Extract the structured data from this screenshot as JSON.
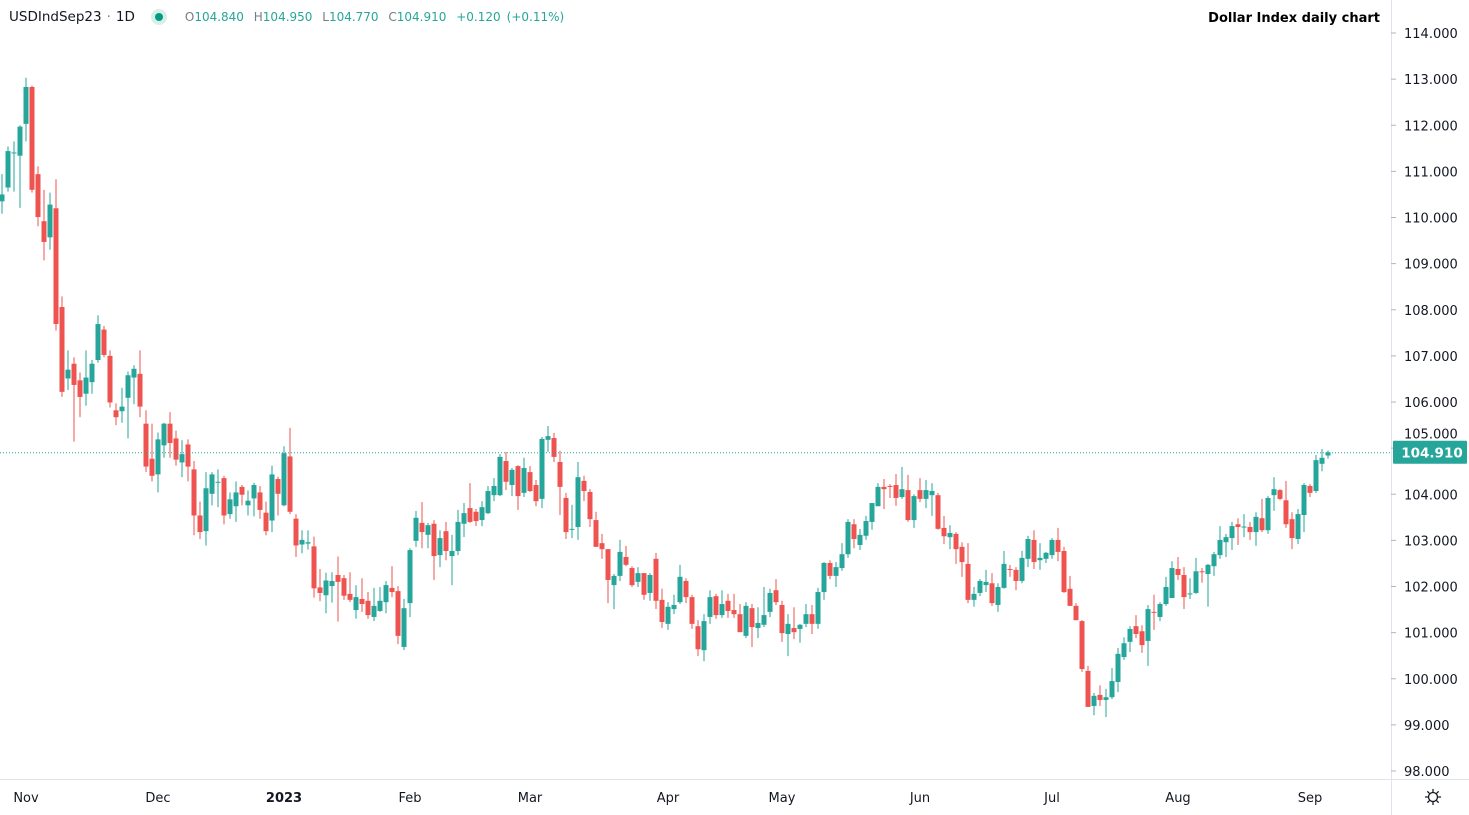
{
  "header": {
    "symbol": "USDIndSep23",
    "separator": "·",
    "interval": "1D",
    "open_label": "O",
    "open": "104.840",
    "high_label": "H",
    "high": "104.950",
    "low_label": "L",
    "low": "104.770",
    "close_label": "C",
    "close": "104.910",
    "change": "+0.120",
    "change_pct": "(+0.11%)",
    "status_icon": "market-open-dot"
  },
  "chart_title": "Dollar Index daily chart",
  "settings_icon": "gear-icon",
  "colors": {
    "up": "#26a69a",
    "down": "#ef5350",
    "last_price": "#26a69a"
  },
  "chart_data": {
    "type": "candlestick",
    "title": "Dollar Index daily chart",
    "ylim": [
      97.8,
      114.4
    ],
    "y_ticks": [
      "98.000",
      "99.000",
      "100.000",
      "101.000",
      "102.000",
      "103.000",
      "104.000",
      "105.000",
      "106.000",
      "107.000",
      "108.000",
      "109.000",
      "110.000",
      "111.000",
      "112.000",
      "113.000",
      "114.000"
    ],
    "y_axis_side": "right",
    "grid": false,
    "last_price": 104.91,
    "last_price_label": "104.910",
    "x_ticks": [
      {
        "label": "Nov",
        "bar": 3,
        "bold": false
      },
      {
        "label": "Dec",
        "bar": 25,
        "bold": false
      },
      {
        "label": "2023",
        "bar": 46,
        "bold": true
      },
      {
        "label": "Feb",
        "bar": 67,
        "bold": false
      },
      {
        "label": "Mar",
        "bar": 87,
        "bold": false
      },
      {
        "label": "Apr",
        "bar": 110,
        "bold": false
      },
      {
        "label": "May",
        "bar": 129,
        "bold": false
      },
      {
        "label": "Jun",
        "bar": 152,
        "bold": false
      },
      {
        "label": "Jul",
        "bar": 174,
        "bold": false
      },
      {
        "label": "Aug",
        "bar": 195,
        "bold": false
      },
      {
        "label": "Sep",
        "bar": 217,
        "bold": false
      }
    ],
    "ohlc_fields": [
      "open",
      "high",
      "low",
      "close"
    ],
    "ohlc": [
      [
        110.35,
        110.94,
        110.08,
        110.5
      ],
      [
        110.65,
        111.54,
        110.56,
        111.44
      ],
      [
        111.39,
        111.65,
        110.56,
        111.41
      ],
      [
        111.34,
        112.0,
        110.21,
        111.97
      ],
      [
        112.03,
        113.03,
        111.65,
        112.83
      ],
      [
        112.83,
        112.86,
        110.54,
        110.6
      ],
      [
        110.94,
        111.11,
        109.81,
        110.01
      ],
      [
        109.92,
        110.6,
        109.07,
        109.47
      ],
      [
        109.57,
        110.54,
        109.3,
        110.28
      ],
      [
        110.2,
        110.83,
        107.55,
        107.69
      ],
      [
        108.06,
        108.29,
        106.11,
        106.22
      ],
      [
        106.51,
        107.12,
        106.26,
        106.7
      ],
      [
        106.83,
        106.97,
        105.14,
        106.37
      ],
      [
        106.47,
        106.64,
        105.67,
        106.11
      ],
      [
        106.18,
        107.12,
        105.92,
        106.53
      ],
      [
        106.43,
        106.91,
        106.18,
        106.83
      ],
      [
        106.91,
        107.88,
        106.85,
        107.69
      ],
      [
        107.57,
        107.65,
        106.97,
        107.02
      ],
      [
        107.0,
        107.12,
        105.88,
        105.99
      ],
      [
        105.82,
        105.97,
        105.5,
        105.67
      ],
      [
        105.8,
        106.31,
        105.55,
        105.9
      ],
      [
        106.09,
        106.66,
        105.21,
        106.58
      ],
      [
        106.53,
        106.8,
        105.95,
        106.72
      ],
      [
        106.61,
        107.12,
        105.67,
        105.9
      ],
      [
        105.53,
        105.82,
        104.48,
        104.6
      ],
      [
        104.77,
        105.53,
        104.28,
        104.4
      ],
      [
        104.43,
        105.34,
        104.04,
        105.19
      ],
      [
        105.06,
        105.55,
        104.79,
        105.53
      ],
      [
        105.53,
        105.78,
        104.79,
        105.11
      ],
      [
        105.21,
        105.38,
        104.62,
        104.75
      ],
      [
        104.69,
        105.17,
        104.37,
        104.87
      ],
      [
        105.08,
        105.19,
        104.28,
        104.6
      ],
      [
        104.54,
        104.72,
        103.11,
        103.54
      ],
      [
        103.54,
        103.84,
        103.03,
        103.18
      ],
      [
        103.2,
        104.48,
        102.89,
        104.13
      ],
      [
        104.01,
        104.48,
        103.76,
        104.43
      ],
      [
        104.25,
        104.54,
        103.72,
        104.27
      ],
      [
        104.35,
        104.4,
        103.35,
        103.54
      ],
      [
        103.57,
        104.04,
        103.47,
        103.89
      ],
      [
        103.74,
        104.28,
        103.4,
        104.04
      ],
      [
        104.16,
        104.2,
        103.76,
        103.99
      ],
      [
        103.76,
        104.08,
        103.54,
        103.86
      ],
      [
        103.91,
        104.25,
        103.52,
        104.2
      ],
      [
        104.04,
        104.18,
        103.47,
        103.66
      ],
      [
        103.6,
        103.84,
        103.11,
        103.2
      ],
      [
        103.43,
        104.62,
        103.18,
        104.43
      ],
      [
        104.33,
        104.38,
        103.54,
        104.01
      ],
      [
        103.76,
        105.04,
        103.74,
        104.89
      ],
      [
        104.82,
        105.44,
        103.57,
        103.62
      ],
      [
        103.47,
        103.57,
        102.64,
        102.89
      ],
      [
        102.91,
        103.22,
        102.72,
        103.01
      ],
      [
        102.93,
        103.22,
        102.8,
        102.96
      ],
      [
        102.87,
        103.08,
        101.76,
        101.96
      ],
      [
        101.98,
        102.38,
        101.68,
        101.86
      ],
      [
        101.81,
        102.3,
        101.42,
        102.13
      ],
      [
        102.01,
        102.31,
        101.65,
        102.12
      ],
      [
        102.25,
        102.65,
        101.24,
        102.1
      ],
      [
        102.18,
        102.25,
        101.71,
        101.8
      ],
      [
        101.84,
        102.31,
        101.66,
        101.71
      ],
      [
        101.49,
        102.03,
        101.3,
        101.77
      ],
      [
        101.73,
        102.18,
        101.45,
        101.62
      ],
      [
        101.69,
        101.88,
        101.3,
        101.38
      ],
      [
        101.34,
        101.97,
        101.25,
        101.58
      ],
      [
        101.47,
        101.99,
        101.45,
        101.69
      ],
      [
        101.66,
        102.12,
        101.42,
        102.03
      ],
      [
        101.97,
        102.44,
        101.77,
        101.88
      ],
      [
        101.9,
        102.01,
        100.75,
        100.93
      ],
      [
        100.69,
        101.73,
        100.62,
        101.53
      ],
      [
        101.64,
        102.83,
        101.34,
        102.79
      ],
      [
        102.99,
        103.64,
        102.86,
        103.49
      ],
      [
        103.38,
        103.83,
        102.83,
        103.18
      ],
      [
        103.12,
        103.38,
        102.83,
        103.33
      ],
      [
        103.36,
        103.44,
        102.14,
        102.66
      ],
      [
        102.68,
        103.22,
        102.42,
        103.05
      ],
      [
        103.2,
        103.4,
        102.57,
        102.77
      ],
      [
        102.66,
        103.12,
        102.03,
        102.77
      ],
      [
        102.77,
        103.66,
        102.68,
        103.4
      ],
      [
        103.36,
        103.81,
        103.07,
        103.59
      ],
      [
        103.7,
        104.24,
        103.38,
        103.4
      ],
      [
        103.62,
        103.68,
        103.31,
        103.42
      ],
      [
        103.44,
        103.85,
        103.31,
        103.72
      ],
      [
        103.59,
        104.18,
        103.57,
        104.07
      ],
      [
        103.98,
        104.35,
        103.85,
        104.18
      ],
      [
        103.98,
        104.87,
        103.96,
        104.81
      ],
      [
        104.72,
        104.92,
        104.09,
        104.27
      ],
      [
        104.2,
        104.57,
        103.96,
        104.53
      ],
      [
        104.61,
        104.63,
        103.66,
        103.96
      ],
      [
        104.03,
        104.79,
        103.94,
        104.57
      ],
      [
        104.48,
        104.61,
        104.05,
        104.07
      ],
      [
        104.2,
        104.31,
        103.74,
        103.85
      ],
      [
        103.9,
        105.24,
        103.7,
        105.2
      ],
      [
        105.18,
        105.48,
        104.92,
        105.26
      ],
      [
        105.22,
        105.33,
        104.7,
        104.81
      ],
      [
        104.7,
        104.94,
        103.55,
        104.16
      ],
      [
        103.92,
        104.03,
        103.03,
        103.18
      ],
      [
        103.24,
        103.77,
        103.05,
        103.25
      ],
      [
        103.29,
        104.7,
        103.01,
        104.37
      ],
      [
        104.29,
        104.4,
        103.85,
        104.07
      ],
      [
        104.05,
        104.11,
        103.29,
        103.46
      ],
      [
        103.44,
        103.62,
        102.86,
        102.86
      ],
      [
        102.94,
        103.14,
        102.6,
        102.81
      ],
      [
        102.81,
        102.81,
        101.64,
        102.14
      ],
      [
        102.03,
        102.27,
        101.51,
        102.23
      ],
      [
        102.23,
        103.01,
        102.12,
        102.75
      ],
      [
        102.64,
        102.88,
        102.44,
        102.47
      ],
      [
        102.4,
        102.44,
        101.99,
        102.03
      ],
      [
        102.1,
        102.42,
        101.99,
        102.29
      ],
      [
        102.29,
        102.29,
        101.71,
        101.82
      ],
      [
        101.86,
        102.29,
        101.69,
        102.25
      ],
      [
        102.6,
        102.73,
        101.51,
        101.69
      ],
      [
        101.71,
        101.95,
        101.1,
        101.23
      ],
      [
        101.19,
        101.66,
        101.06,
        101.56
      ],
      [
        101.51,
        101.82,
        101.4,
        101.6
      ],
      [
        101.66,
        102.47,
        101.62,
        102.21
      ],
      [
        102.12,
        102.18,
        101.64,
        101.77
      ],
      [
        101.77,
        101.82,
        101.08,
        101.19
      ],
      [
        101.14,
        101.27,
        100.49,
        100.64
      ],
      [
        100.62,
        101.4,
        100.38,
        101.25
      ],
      [
        101.34,
        101.92,
        101.19,
        101.77
      ],
      [
        101.79,
        101.84,
        101.3,
        101.38
      ],
      [
        101.38,
        101.92,
        101.32,
        101.62
      ],
      [
        101.69,
        101.84,
        101.32,
        101.47
      ],
      [
        101.49,
        101.84,
        101.32,
        101.4
      ],
      [
        101.4,
        101.62,
        101.01,
        101.01
      ],
      [
        100.93,
        101.66,
        100.88,
        101.58
      ],
      [
        101.53,
        101.62,
        100.69,
        101.12
      ],
      [
        101.1,
        101.55,
        100.88,
        101.21
      ],
      [
        101.17,
        101.99,
        101.12,
        101.38
      ],
      [
        101.45,
        101.95,
        101.34,
        101.86
      ],
      [
        101.92,
        102.16,
        101.6,
        101.66
      ],
      [
        101.6,
        101.69,
        100.8,
        100.99
      ],
      [
        100.97,
        101.4,
        100.49,
        101.19
      ],
      [
        101.1,
        101.55,
        100.86,
        101.01
      ],
      [
        101.08,
        101.19,
        100.78,
        101.17
      ],
      [
        101.19,
        101.62,
        101.12,
        101.4
      ],
      [
        101.4,
        101.6,
        100.97,
        101.19
      ],
      [
        101.19,
        101.97,
        101.08,
        101.88
      ],
      [
        101.88,
        102.53,
        101.71,
        102.51
      ],
      [
        102.51,
        102.57,
        102.16,
        102.23
      ],
      [
        102.23,
        102.53,
        101.99,
        102.42
      ],
      [
        102.4,
        102.94,
        102.34,
        102.7
      ],
      [
        102.7,
        103.46,
        102.62,
        103.4
      ],
      [
        103.35,
        103.46,
        102.83,
        103.03
      ],
      [
        102.9,
        103.25,
        102.79,
        103.12
      ],
      [
        103.1,
        103.53,
        103.01,
        103.42
      ],
      [
        103.4,
        103.81,
        103.23,
        103.81
      ],
      [
        103.74,
        104.24,
        103.74,
        104.16
      ],
      [
        104.16,
        104.33,
        103.68,
        104.11
      ],
      [
        104.18,
        104.22,
        103.92,
        104.17
      ],
      [
        104.2,
        104.44,
        103.75,
        103.92
      ],
      [
        103.94,
        104.59,
        103.9,
        104.11
      ],
      [
        104.09,
        104.42,
        103.4,
        103.44
      ],
      [
        103.44,
        104.0,
        103.27,
        103.96
      ],
      [
        104.09,
        104.35,
        103.83,
        103.9
      ],
      [
        103.9,
        104.31,
        103.7,
        104.09
      ],
      [
        103.98,
        104.24,
        103.53,
        104.07
      ],
      [
        103.98,
        104.03,
        103.23,
        103.25
      ],
      [
        103.27,
        103.53,
        102.92,
        103.09
      ],
      [
        103.07,
        103.33,
        102.81,
        103.16
      ],
      [
        103.14,
        103.18,
        102.49,
        102.81
      ],
      [
        102.86,
        102.96,
        102.21,
        102.53
      ],
      [
        102.49,
        102.94,
        101.64,
        101.71
      ],
      [
        101.71,
        101.99,
        101.56,
        101.84
      ],
      [
        101.86,
        102.16,
        101.79,
        102.12
      ],
      [
        102.03,
        102.36,
        101.88,
        102.1
      ],
      [
        102.07,
        102.29,
        101.58,
        101.64
      ],
      [
        101.6,
        102.07,
        101.45,
        101.99
      ],
      [
        101.97,
        102.77,
        101.95,
        102.49
      ],
      [
        102.38,
        102.47,
        102.21,
        102.36
      ],
      [
        102.36,
        102.42,
        101.92,
        102.12
      ],
      [
        102.12,
        102.77,
        102.07,
        102.62
      ],
      [
        102.6,
        103.1,
        102.42,
        103.03
      ],
      [
        103.01,
        103.22,
        102.38,
        102.53
      ],
      [
        102.57,
        102.94,
        102.36,
        102.62
      ],
      [
        102.6,
        102.75,
        102.51,
        102.73
      ],
      [
        102.68,
        103.05,
        102.6,
        103.01
      ],
      [
        103.01,
        103.27,
        102.55,
        102.75
      ],
      [
        102.77,
        102.86,
        101.86,
        101.88
      ],
      [
        101.95,
        102.23,
        101.58,
        101.58
      ],
      [
        101.58,
        101.64,
        101.27,
        101.27
      ],
      [
        101.25,
        101.27,
        100.15,
        100.21
      ],
      [
        100.17,
        100.28,
        99.39,
        99.39
      ],
      [
        99.41,
        99.69,
        99.21,
        99.63
      ],
      [
        99.65,
        99.86,
        99.41,
        99.54
      ],
      [
        99.54,
        99.78,
        99.17,
        99.6
      ],
      [
        99.6,
        100.23,
        99.56,
        99.95
      ],
      [
        99.93,
        100.67,
        99.71,
        100.54
      ],
      [
        100.47,
        100.9,
        100.41,
        100.77
      ],
      [
        100.8,
        101.14,
        100.58,
        101.08
      ],
      [
        101.14,
        101.38,
        100.88,
        100.97
      ],
      [
        101.03,
        101.16,
        100.56,
        100.73
      ],
      [
        100.82,
        101.6,
        100.28,
        101.51
      ],
      [
        101.45,
        101.82,
        101.06,
        101.44
      ],
      [
        101.34,
        101.66,
        101.25,
        101.62
      ],
      [
        101.62,
        102.21,
        101.58,
        101.99
      ],
      [
        101.75,
        102.55,
        101.75,
        102.4
      ],
      [
        102.38,
        102.64,
        102.14,
        102.25
      ],
      [
        102.25,
        102.42,
        101.51,
        101.77
      ],
      [
        101.84,
        102.18,
        101.73,
        101.85
      ],
      [
        101.86,
        102.62,
        101.84,
        102.33
      ],
      [
        102.33,
        102.4,
        102.08,
        102.31
      ],
      [
        102.27,
        102.49,
        101.56,
        102.47
      ],
      [
        102.44,
        102.75,
        102.23,
        102.7
      ],
      [
        102.68,
        103.31,
        102.6,
        103.01
      ],
      [
        102.96,
        103.14,
        102.64,
        103.07
      ],
      [
        103.05,
        103.4,
        102.79,
        103.31
      ],
      [
        103.35,
        103.48,
        102.9,
        103.29
      ],
      [
        103.29,
        103.57,
        103.07,
        103.3
      ],
      [
        103.29,
        103.4,
        103.01,
        103.18
      ],
      [
        103.18,
        103.61,
        102.88,
        103.51
      ],
      [
        103.48,
        103.9,
        103.18,
        103.22
      ],
      [
        103.22,
        103.96,
        103.14,
        103.92
      ],
      [
        103.98,
        104.37,
        103.64,
        104.11
      ],
      [
        104.09,
        104.11,
        103.87,
        103.9
      ],
      [
        103.87,
        104.29,
        103.27,
        103.35
      ],
      [
        103.46,
        103.61,
        102.81,
        103.05
      ],
      [
        103.03,
        103.68,
        102.92,
        103.57
      ],
      [
        103.55,
        104.24,
        103.18,
        104.2
      ],
      [
        104.18,
        104.22,
        103.94,
        104.03
      ],
      [
        104.07,
        104.85,
        104.03,
        104.74
      ],
      [
        104.66,
        104.98,
        104.5,
        104.79
      ],
      [
        104.84,
        104.95,
        104.77,
        104.91
      ]
    ]
  }
}
